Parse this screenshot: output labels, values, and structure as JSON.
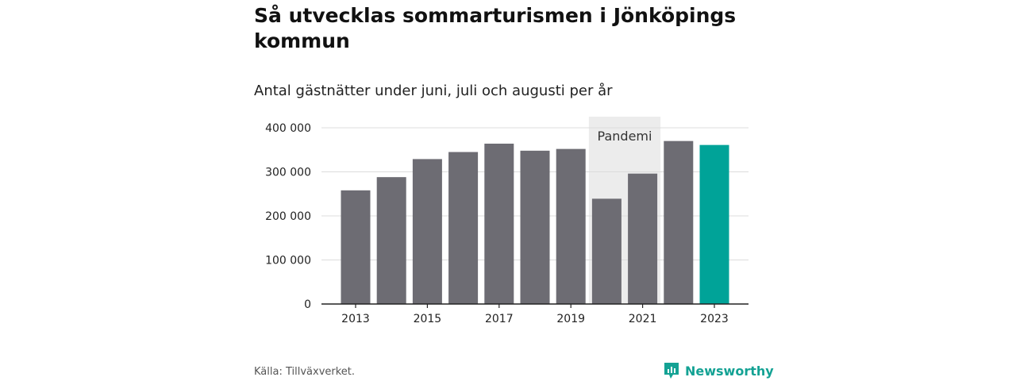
{
  "chart_data": {
    "type": "bar",
    "title": "Så utvecklas sommarturismen i Jönköpings kommun",
    "subtitle": "Antal gästnätter under juni, juli och augusti per år",
    "categories": [
      "2013",
      "2014",
      "2015",
      "2016",
      "2017",
      "2018",
      "2019",
      "2020",
      "2021",
      "2022",
      "2023"
    ],
    "values": [
      258000,
      288000,
      329000,
      345000,
      364000,
      348000,
      352000,
      239000,
      296000,
      370000,
      361000
    ],
    "x_tick_labels": [
      "2013",
      "2015",
      "2017",
      "2019",
      "2021",
      "2023"
    ],
    "y_ticks": [
      0,
      100000,
      200000,
      300000,
      400000
    ],
    "y_tick_labels": [
      "0",
      "100 000",
      "200 000",
      "300 000",
      "400 000"
    ],
    "ylim": [
      0,
      400000
    ],
    "xlabel": "",
    "ylabel": "",
    "grid": true,
    "bar_color": "#6d6c73",
    "highlight_index": 10,
    "highlight_color": "#00a398",
    "annotation": {
      "label": "Pandemi",
      "from_category": "2020",
      "to_category": "2021",
      "color": "#ececec"
    }
  },
  "footer": {
    "source": "Källa: Tillväxverket.",
    "brand": "Newsworthy",
    "brand_color": "#14a294"
  }
}
